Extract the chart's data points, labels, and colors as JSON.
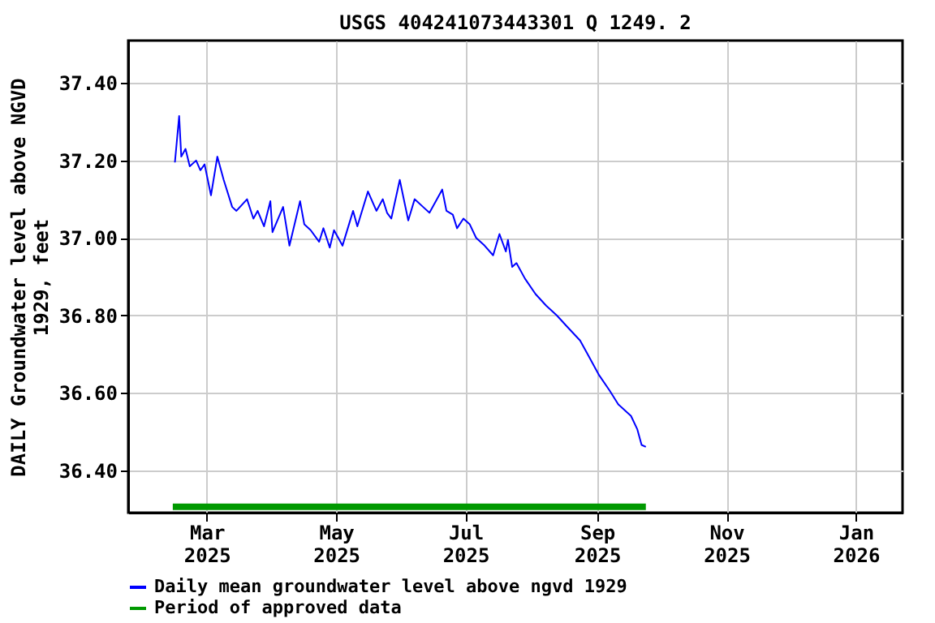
{
  "chart_data": {
    "type": "line",
    "title": "USGS 404241073443301 Q  1249. 2",
    "ylabel": "DAILY Groundwater level above NGVD 1929, feet",
    "series": [
      {
        "name": "Daily mean groundwater level above ngvd 1929",
        "color": "#0000ff",
        "x": [
          "2025-02-14",
          "2025-02-16",
          "2025-02-17",
          "2025-02-19",
          "2025-02-21",
          "2025-02-24",
          "2025-02-26",
          "2025-02-28",
          "2025-03-03",
          "2025-03-06",
          "2025-03-09",
          "2025-03-13",
          "2025-03-15",
          "2025-03-20",
          "2025-03-23",
          "2025-03-25",
          "2025-03-28",
          "2025-03-31",
          "2025-04-01",
          "2025-04-06",
          "2025-04-09",
          "2025-04-14",
          "2025-04-16",
          "2025-04-19",
          "2025-04-23",
          "2025-04-25",
          "2025-04-28",
          "2025-04-30",
          "2025-05-04",
          "2025-05-09",
          "2025-05-11",
          "2025-05-16",
          "2025-05-20",
          "2025-05-23",
          "2025-05-25",
          "2025-05-27",
          "2025-05-31",
          "2025-06-04",
          "2025-06-07",
          "2025-06-11",
          "2025-06-14",
          "2025-06-20",
          "2025-06-22",
          "2025-06-25",
          "2025-06-27",
          "2025-06-30",
          "2025-07-03",
          "2025-07-06",
          "2025-07-10",
          "2025-07-14",
          "2025-07-17",
          "2025-07-20",
          "2025-07-21",
          "2025-07-23",
          "2025-07-25",
          "2025-07-29",
          "2025-08-03",
          "2025-08-08",
          "2025-08-13",
          "2025-08-18",
          "2025-08-24",
          "2025-08-28",
          "2025-09-02",
          "2025-09-07",
          "2025-09-11",
          "2025-09-17",
          "2025-09-20",
          "2025-09-22",
          "2025-09-24"
        ],
        "values": [
          37.195,
          37.315,
          37.21,
          37.23,
          37.185,
          37.2,
          37.175,
          37.19,
          37.11,
          37.21,
          37.15,
          37.08,
          37.07,
          37.1,
          37.05,
          37.07,
          37.03,
          37.095,
          37.015,
          37.08,
          36.98,
          37.095,
          37.035,
          37.02,
          36.99,
          37.025,
          36.975,
          37.02,
          36.98,
          37.07,
          37.03,
          37.12,
          37.07,
          37.1,
          37.065,
          37.05,
          37.15,
          37.045,
          37.1,
          37.08,
          37.065,
          37.125,
          37.07,
          37.06,
          37.025,
          37.05,
          37.035,
          37.0,
          36.98,
          36.955,
          37.01,
          36.965,
          36.995,
          36.925,
          36.935,
          36.895,
          36.855,
          36.825,
          36.8,
          36.77,
          36.735,
          36.695,
          36.645,
          36.605,
          36.57,
          36.54,
          36.505,
          36.465,
          36.46
        ]
      },
      {
        "name": "Period of approved data",
        "color": "#009900",
        "x": [
          "2025-02-13",
          "2025-09-24"
        ],
        "values": [
          36.305,
          36.305
        ]
      }
    ],
    "xlim": [
      "2025-01-23",
      "2026-01-23"
    ],
    "xticks": [
      {
        "value": "2025-03-01",
        "label": "Mar 2025"
      },
      {
        "value": "2025-05-01",
        "label": "May 2025"
      },
      {
        "value": "2025-07-01",
        "label": "Jul 2025"
      },
      {
        "value": "2025-09-01",
        "label": "Sep 2025"
      },
      {
        "value": "2025-11-01",
        "label": "Nov 2025"
      },
      {
        "value": "2026-01-01",
        "label": "Jan 2026"
      }
    ],
    "ylim": [
      36.29,
      37.51
    ],
    "yticks": [
      {
        "value": 36.4,
        "label": "36.40"
      },
      {
        "value": 36.6,
        "label": "36.60"
      },
      {
        "value": 36.8,
        "label": "36.80"
      },
      {
        "value": 37.0,
        "label": "37.00"
      },
      {
        "value": 37.2,
        "label": "37.20"
      },
      {
        "value": 37.4,
        "label": "37.40"
      }
    ],
    "grid": true,
    "legend": "bottom"
  }
}
